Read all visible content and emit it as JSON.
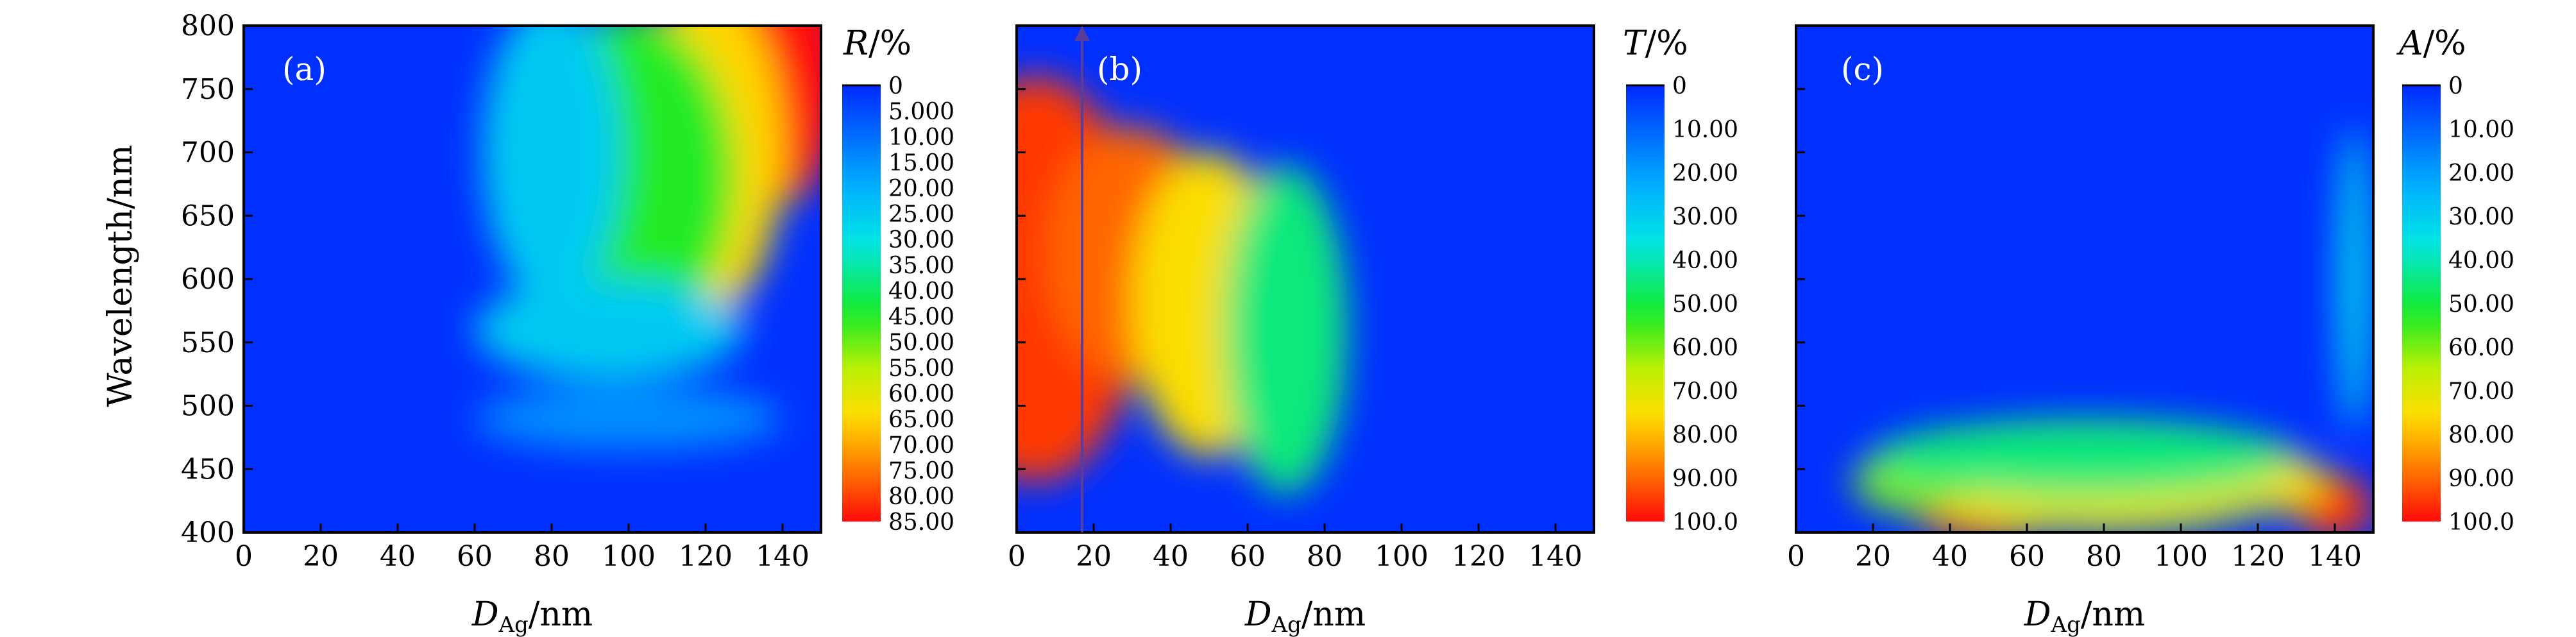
{
  "figure": {
    "ylabel": "Wavelength/nm",
    "xlabel_main": "D",
    "xlabel_sub": "Ag",
    "xlabel_unit": "/nm"
  },
  "chart_data": [
    {
      "type": "heatmap",
      "panel_label": "(a)",
      "quantity": "R",
      "unit": "/%",
      "x_ticks": [
        "0",
        "20",
        "40",
        "60",
        "80",
        "100",
        "120",
        "140"
      ],
      "y_ticks": [
        "400",
        "450",
        "500",
        "550",
        "600",
        "650",
        "700",
        "750",
        "800"
      ],
      "xlim": [
        0,
        150
      ],
      "ylim": [
        400,
        800
      ],
      "colorbar": {
        "range": [
          0,
          85
        ],
        "ticks": [
          "0",
          "5.000",
          "10.00",
          "15.00",
          "20.00",
          "25.00",
          "30.00",
          "35.00",
          "40.00",
          "45.00",
          "50.00",
          "55.00",
          "60.00",
          "65.00",
          "70.00",
          "75.00",
          "80.00",
          "85.00"
        ]
      },
      "features": [
        {
          "x": 140,
          "y": 770,
          "value": 85,
          "sx": 16,
          "sy": 110
        },
        {
          "x": 120,
          "y": 700,
          "value": 65,
          "sx": 20,
          "sy": 130
        },
        {
          "x": 100,
          "y": 680,
          "value": 45,
          "sx": 28,
          "sy": 130
        },
        {
          "x": 80,
          "y": 700,
          "value": 25,
          "sx": 18,
          "sy": 120
        },
        {
          "x": 95,
          "y": 560,
          "value": 25,
          "sx": 35,
          "sy": 40
        },
        {
          "x": 100,
          "y": 490,
          "value": 15,
          "sx": 40,
          "sy": 25
        }
      ]
    },
    {
      "type": "heatmap",
      "panel_label": "(b)",
      "quantity": "T",
      "unit": "/%",
      "x_ticks": [
        "0",
        "20",
        "40",
        "60",
        "80",
        "100",
        "120",
        "140"
      ],
      "y_ticks": [
        "400",
        "450",
        "500",
        "550",
        "600",
        "650",
        "700",
        "750",
        "800"
      ],
      "xlim": [
        0,
        150
      ],
      "ylim": [
        400,
        800
      ],
      "colorbar": {
        "range": [
          0,
          100
        ],
        "ticks": [
          "0",
          "10.00",
          "20.00",
          "30.00",
          "40.00",
          "50.00",
          "60.00",
          "70.00",
          "80.00",
          "90.00",
          "100.0"
        ]
      },
      "annotation_arrow": {
        "x": 17,
        "y_from": 400,
        "y_to": 800
      },
      "features": [
        {
          "x": 5,
          "y": 600,
          "value": 95,
          "sx": 28,
          "sy": 160
        },
        {
          "x": 30,
          "y": 620,
          "value": 90,
          "sx": 22,
          "sy": 100
        },
        {
          "x": 50,
          "y": 580,
          "value": 75,
          "sx": 20,
          "sy": 120
        },
        {
          "x": 70,
          "y": 560,
          "value": 45,
          "sx": 16,
          "sy": 130
        }
      ]
    },
    {
      "type": "heatmap",
      "panel_label": "(c)",
      "quantity": "A",
      "unit": "/%",
      "x_ticks": [
        "0",
        "20",
        "40",
        "60",
        "80",
        "100",
        "120",
        "140"
      ],
      "y_ticks": [
        "400",
        "450",
        "500",
        "550",
        "600",
        "650",
        "700",
        "750",
        "800"
      ],
      "xlim": [
        0,
        150
      ],
      "ylim": [
        400,
        800
      ],
      "colorbar": {
        "range": [
          0,
          100
        ],
        "ticks": [
          "0",
          "10.00",
          "20.00",
          "30.00",
          "40.00",
          "50.00",
          "60.00",
          "70.00",
          "80.00",
          "90.00",
          "100.0"
        ]
      },
      "features": [
        {
          "x": 50,
          "y": 412,
          "value": 90,
          "sx": 18,
          "sy": 18
        },
        {
          "x": 140,
          "y": 420,
          "value": 95,
          "sx": 10,
          "sy": 25
        },
        {
          "x": 120,
          "y": 440,
          "value": 75,
          "sx": 18,
          "sy": 25
        },
        {
          "x": 80,
          "y": 430,
          "value": 70,
          "sx": 45,
          "sy": 30
        },
        {
          "x": 30,
          "y": 440,
          "value": 60,
          "sx": 15,
          "sy": 25
        },
        {
          "x": 75,
          "y": 460,
          "value": 45,
          "sx": 55,
          "sy": 30
        },
        {
          "x": 145,
          "y": 600,
          "value": 35,
          "sx": 4,
          "sy": 120
        }
      ]
    }
  ]
}
